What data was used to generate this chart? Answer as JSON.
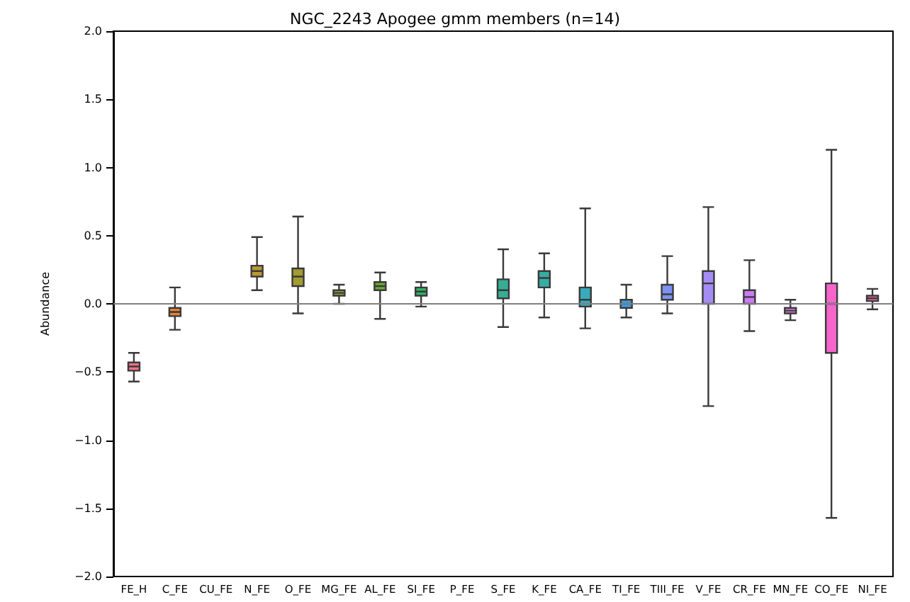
{
  "chart_data": {
    "type": "box",
    "title": "NGC_2243 Apogee gmm members (n=14)",
    "ylabel": "Abundance",
    "categories": [
      "FE_H",
      "C_FE",
      "CU_FE",
      "N_FE",
      "O_FE",
      "MG_FE",
      "AL_FE",
      "SI_FE",
      "P_FE",
      "S_FE",
      "K_FE",
      "CA_FE",
      "TI_FE",
      "TIII_FE",
      "V_FE",
      "CR_FE",
      "MN_FE",
      "CO_FE",
      "NI_FE"
    ],
    "boxes": [
      {
        "low": -0.57,
        "q1": -0.49,
        "median": -0.46,
        "q3": -0.43,
        "high": -0.36
      },
      {
        "low": -0.19,
        "q1": -0.09,
        "median": -0.06,
        "q3": -0.03,
        "high": 0.12
      },
      null,
      {
        "low": 0.1,
        "q1": 0.2,
        "median": 0.24,
        "q3": 0.28,
        "high": 0.49
      },
      {
        "low": -0.07,
        "q1": 0.13,
        "median": 0.2,
        "q3": 0.26,
        "high": 0.64
      },
      {
        "low": 0.0,
        "q1": 0.06,
        "median": 0.08,
        "q3": 0.1,
        "high": 0.14
      },
      {
        "low": -0.11,
        "q1": 0.1,
        "median": 0.13,
        "q3": 0.16,
        "high": 0.23
      },
      {
        "low": -0.02,
        "q1": 0.06,
        "median": 0.09,
        "q3": 0.12,
        "high": 0.16
      },
      null,
      {
        "low": -0.17,
        "q1": 0.04,
        "median": 0.1,
        "q3": 0.18,
        "high": 0.4
      },
      {
        "low": -0.1,
        "q1": 0.12,
        "median": 0.19,
        "q3": 0.24,
        "high": 0.37
      },
      {
        "low": -0.18,
        "q1": -0.02,
        "median": 0.03,
        "q3": 0.12,
        "high": 0.7
      },
      {
        "low": -0.1,
        "q1": -0.03,
        "median": 0.0,
        "q3": 0.03,
        "high": 0.14
      },
      {
        "low": -0.07,
        "q1": 0.03,
        "median": 0.07,
        "q3": 0.14,
        "high": 0.35
      },
      {
        "low": -0.75,
        "q1": 0.0,
        "median": 0.15,
        "q3": 0.24,
        "high": 0.71
      },
      {
        "low": -0.2,
        "q1": 0.0,
        "median": 0.05,
        "q3": 0.1,
        "high": 0.32
      },
      {
        "low": -0.12,
        "q1": -0.07,
        "median": -0.05,
        "q3": -0.03,
        "high": 0.03
      },
      {
        "low": -1.57,
        "q1": -0.36,
        "median": 0.0,
        "q3": 0.15,
        "high": 1.13
      },
      {
        "low": -0.04,
        "q1": 0.02,
        "median": 0.04,
        "q3": 0.06,
        "high": 0.11
      }
    ],
    "colors": [
      "#f77189",
      "#e68332",
      null,
      "#bb9832",
      "#a39c31",
      "#97a431",
      "#6aac31",
      "#32b166",
      null,
      "#35ae93",
      "#36ada4",
      "#38aabb",
      "#3ba3ec",
      "#7e91f4",
      "#a48cf4",
      "#cc7af4",
      "#e67de8",
      "#f565cc",
      "#f66bad"
    ],
    "ylim": [
      -2.0,
      2.0
    ],
    "yticks": [
      {
        "value": -2,
        "label": "−2.0"
      },
      {
        "value": -1.5,
        "label": "−1.5"
      },
      {
        "value": -1,
        "label": "−1.0"
      },
      {
        "value": -0.5,
        "label": "−0.5"
      },
      {
        "value": 0,
        "label": "0.0"
      },
      {
        "value": 0.5,
        "label": "0.5"
      },
      {
        "value": 1,
        "label": "1.0"
      },
      {
        "value": 1.5,
        "label": "1.5"
      },
      {
        "value": 2,
        "label": "2.0"
      }
    ],
    "ref_lines": [
      {
        "axis": "y",
        "value": 0,
        "label": null,
        "color": "#808080"
      }
    ],
    "grid": false
  }
}
